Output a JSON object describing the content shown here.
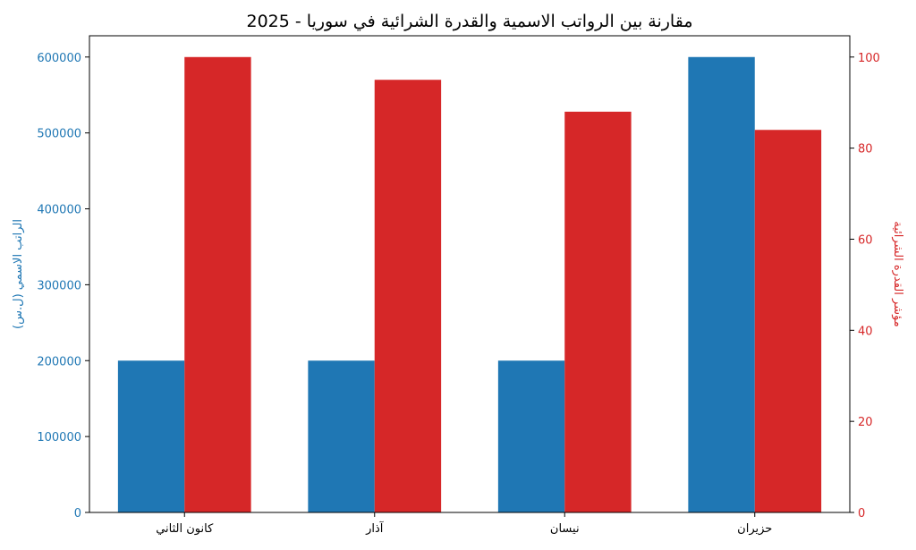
{
  "chart_data": {
    "type": "bar",
    "title": "مقارنة بين الرواتب الاسمية والقدرة الشرائية في سوريا - 2025",
    "categories": [
      "كانون الثاني",
      "آذار",
      "نيسان",
      "حزيران"
    ],
    "series": [
      {
        "values": [
          200000,
          200000,
          200000,
          600000
        ],
        "color": "#1f77b4",
        "axis": "left"
      },
      {
        "values": [
          100,
          95,
          88,
          84
        ],
        "color": "#d62728",
        "axis": "right"
      }
    ],
    "ylabel_left": "الراتب الاسمي (ل.س)",
    "ylabel_right": "مؤشر القدرة الشرائية",
    "ylim_left": [
      0,
      628000
    ],
    "ylim_right": [
      0,
      104.67
    ],
    "yticks_left": [
      0,
      100000,
      200000,
      300000,
      400000,
      500000,
      600000
    ],
    "yticks_right": [
      0,
      20,
      40,
      60,
      80,
      100
    ],
    "left_color": "#1f77b4",
    "right_color": "#d62728",
    "grid": false
  }
}
